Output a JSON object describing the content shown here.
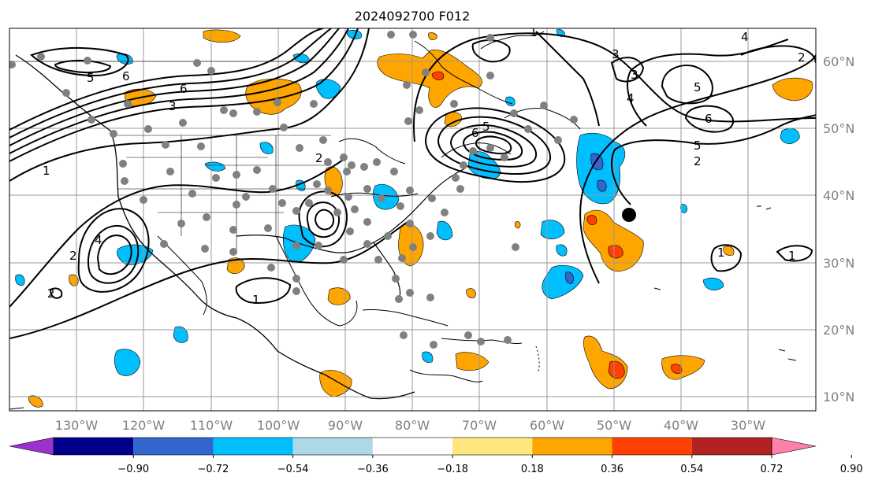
{
  "title": "2024092700 F012",
  "lon_labels": [
    "130°W",
    "120°W",
    "110°W",
    "100°W",
    "90°W",
    "80°W",
    "70°W",
    "60°W",
    "50°W",
    "40°W",
    "30°W"
  ],
  "lat_labels": [
    "60°N",
    "50°N",
    "40°N",
    "30°N",
    "20°N",
    "10°N"
  ],
  "colorbar": {
    "ticks": [
      "−0.90",
      "−0.72",
      "−0.54",
      "−0.36",
      "−0.18",
      "0.18",
      "0.36",
      "0.54",
      "0.72",
      "0.90"
    ],
    "colors": [
      "#9933cc",
      "#00008b",
      "#3366cc",
      "#00bfff",
      "#add8e6",
      "#ffffff",
      "#ffe680",
      "#ffa500",
      "#ff4000",
      "#b22222",
      "#ff80aa"
    ]
  },
  "contour_labels": [
    "1",
    "2",
    "3",
    "4",
    "5",
    "6"
  ],
  "colors": {
    "gridline": "#999999",
    "coast": "#000000",
    "station": "#808080",
    "marker": "#000000"
  }
}
